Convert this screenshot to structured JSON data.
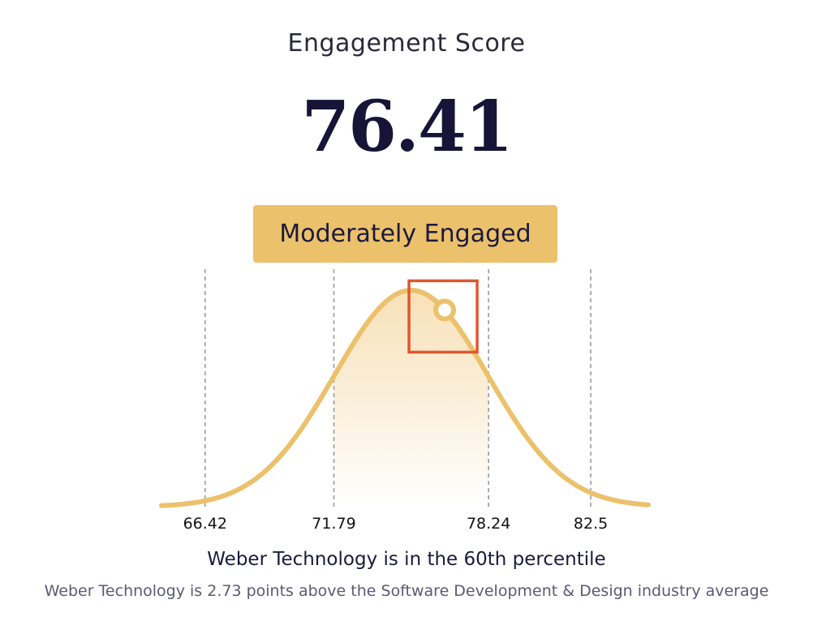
{
  "title": "Engagement Score",
  "score": "76.41",
  "badge": "Moderately Engaged",
  "percentile_text": "Weber Technology is in the 60th percentile",
  "comparison_text": "Weber Technology is 2.73 points above the Software Development & Design industry average",
  "colors": {
    "curve": "#ecc16c",
    "fill_top": "#f7dfb4",
    "badge": "#ecc16c",
    "highlight_box": "#e0562f",
    "guide_line": "#9a9aa8",
    "text_dark": "#171437"
  },
  "chart_data": {
    "type": "area",
    "title": "Engagement Score",
    "xlabel": "",
    "ylabel": "",
    "distribution": "normal",
    "mean": 75.01,
    "std_dev": 3.2,
    "x_range": [
      64.6,
      84.9
    ],
    "shaded_range": [
      71.79,
      78.24
    ],
    "markers": [
      {
        "value": 66.42,
        "label": "66.42"
      },
      {
        "value": 71.79,
        "label": "71.79"
      },
      {
        "value": 78.24,
        "label": "78.24"
      },
      {
        "value": 82.5,
        "label": "82.5"
      }
    ],
    "current_value": 76.41,
    "highlight": "box around current value point",
    "grid": false
  }
}
